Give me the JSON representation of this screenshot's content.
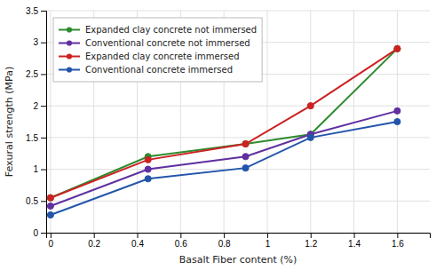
{
  "chart_data": {
    "type": "line",
    "x": [
      0,
      0.45,
      0.9,
      1.2,
      1.6
    ],
    "series": [
      {
        "name": "Expanded clay concrete not immersed",
        "color": "#2e8b2e",
        "marker": "circle",
        "values": [
          0.55,
          1.2,
          1.4,
          1.55,
          2.9
        ]
      },
      {
        "name": "Conventional concrete not immersed",
        "color": "#6030a0",
        "marker": "circle",
        "values": [
          0.42,
          1.0,
          1.2,
          1.55,
          1.92
        ]
      },
      {
        "name": "Expanded clay concrete immersed",
        "color": "#cc2222",
        "marker": "circle",
        "values": [
          0.55,
          1.15,
          1.4,
          2.0,
          2.9
        ]
      },
      {
        "name": "Conventional concrete immersed",
        "color": "#2255aa",
        "marker": "circle",
        "values": [
          0.28,
          0.85,
          1.02,
          1.5,
          1.75
        ]
      }
    ],
    "xlabel": "Basalt Fiber content (%)",
    "ylabel": "Fexural strength (MPa)",
    "xlim": [
      -0.02,
      1.75
    ],
    "ylim": [
      0,
      3.5
    ],
    "xticks": [
      0,
      0.2,
      0.4,
      0.6,
      0.8,
      1,
      1.2,
      1.4,
      1.6
    ],
    "yticks": [
      0,
      0.5,
      1,
      1.5,
      2,
      2.5,
      3,
      3.5
    ],
    "grid": true,
    "legend": "upper left"
  }
}
